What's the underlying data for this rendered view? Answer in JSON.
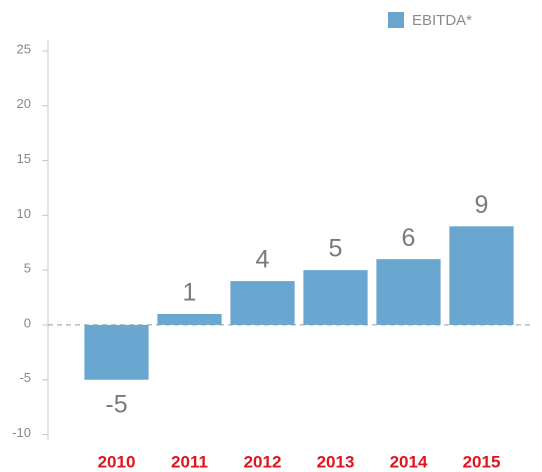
{
  "chart_data": {
    "type": "bar",
    "categories": [
      "2010",
      "2011",
      "2012",
      "2013",
      "2014",
      "2015"
    ],
    "series": [
      {
        "name": "EBITDA*",
        "color": "#6aa7d0",
        "values": [
          -5,
          1,
          4,
          5,
          6,
          9
        ]
      }
    ],
    "ylim": [
      -10.5,
      26
    ],
    "yticks": [
      -10,
      -5,
      0,
      5,
      10,
      15,
      20,
      25
    ],
    "legend": "top-right",
    "category_color": "#e0141e"
  }
}
